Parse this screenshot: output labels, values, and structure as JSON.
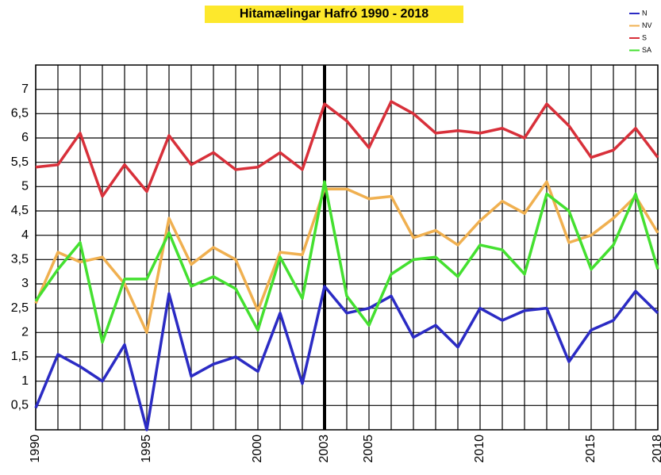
{
  "chart_data": {
    "type": "line",
    "title": "Hitamælingar Hafró 1990 - 2018",
    "x": [
      1990,
      1991,
      1992,
      1993,
      1994,
      1995,
      1996,
      1997,
      1998,
      1999,
      2000,
      2001,
      2002,
      2003,
      2004,
      2005,
      2006,
      2007,
      2008,
      2009,
      2010,
      2011,
      2012,
      2013,
      2014,
      2015,
      2016,
      2017,
      2018
    ],
    "series": [
      {
        "name": "N",
        "color": "#2b2bc4",
        "values": [
          0.45,
          1.55,
          1.3,
          1.0,
          1.75,
          0.0,
          2.8,
          1.1,
          1.35,
          1.5,
          1.2,
          2.4,
          0.95,
          2.95,
          2.4,
          2.5,
          2.75,
          1.9,
          2.15,
          1.7,
          2.5,
          2.25,
          2.45,
          2.5,
          1.4,
          2.05,
          2.25,
          2.85,
          2.4
        ]
      },
      {
        "name": "NV",
        "color": "#f0b050",
        "values": [
          2.6,
          3.65,
          3.45,
          3.55,
          3.0,
          2.0,
          4.35,
          3.4,
          3.75,
          3.5,
          2.45,
          3.65,
          3.6,
          4.95,
          4.95,
          4.75,
          4.8,
          3.95,
          4.1,
          3.8,
          4.3,
          4.7,
          4.45,
          5.1,
          3.85,
          4.0,
          4.35,
          4.8,
          4.05
        ]
      },
      {
        "name": "S",
        "color": "#d8303a",
        "values": [
          5.4,
          5.45,
          6.1,
          4.8,
          5.45,
          4.9,
          6.05,
          5.45,
          5.7,
          5.35,
          5.4,
          5.7,
          5.35,
          6.7,
          6.35,
          5.8,
          6.75,
          6.5,
          6.1,
          6.15,
          6.1,
          6.2,
          6.0,
          6.7,
          6.25,
          5.6,
          5.75,
          6.2,
          5.6
        ]
      },
      {
        "name": "SA",
        "color": "#44e030",
        "values": [
          2.65,
          3.3,
          3.85,
          1.8,
          3.1,
          3.1,
          4.05,
          2.95,
          3.15,
          2.9,
          2.05,
          3.55,
          2.7,
          5.1,
          2.75,
          2.15,
          3.2,
          3.5,
          3.55,
          3.15,
          3.8,
          3.7,
          3.2,
          4.85,
          4.5,
          3.3,
          3.8,
          4.85,
          3.3
        ]
      }
    ],
    "xlim": [
      1990,
      2018
    ],
    "xticks": [
      1990,
      1995,
      2000,
      2003,
      2005,
      2010,
      2015,
      2018
    ],
    "ylim": [
      0,
      7.5
    ],
    "yticks": [
      {
        "value": 0.5,
        "label": "0,5"
      },
      1,
      {
        "value": 1.5,
        "label": "1,5"
      },
      2,
      {
        "value": 2.5,
        "label": "2,5"
      },
      3,
      {
        "value": 3.5,
        "label": "3,5"
      },
      4,
      {
        "value": 4.5,
        "label": "4,5"
      },
      5,
      {
        "value": 5.5,
        "label": "5,5"
      },
      6,
      {
        "value": 6.5,
        "label": "6,5"
      },
      7
    ],
    "vline": 2003,
    "grid": true,
    "legend": "top-right"
  }
}
